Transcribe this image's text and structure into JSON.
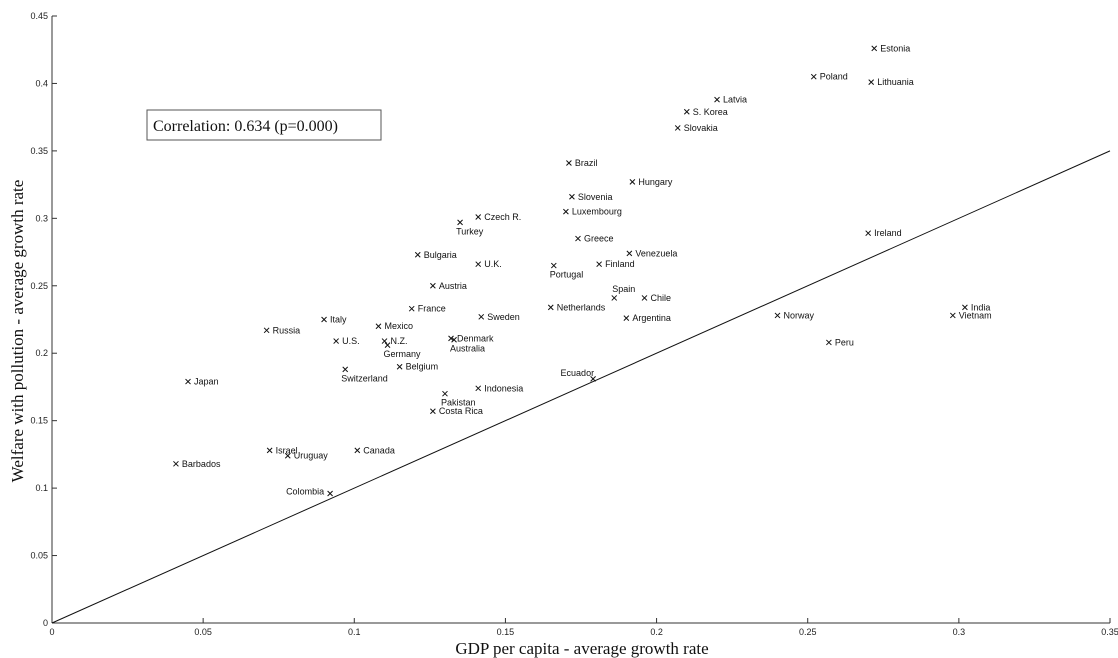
{
  "chart_data": {
    "type": "scatter",
    "xlabel": "GDP per capita - average growth rate",
    "ylabel": "Welfare with pollution - average growth rate",
    "xlim": [
      0,
      0.35
    ],
    "ylim": [
      0,
      0.45
    ],
    "xticks": [
      0,
      0.05,
      0.1,
      0.15,
      0.2,
      0.25,
      0.3,
      0.35
    ],
    "xtick_labels": [
      "0",
      "0.05",
      "0.1",
      "0.15",
      "0.2",
      "0.25",
      "0.3",
      "0.35"
    ],
    "yticks": [
      0,
      0.05,
      0.1,
      0.15,
      0.2,
      0.25,
      0.3,
      0.35,
      0.4,
      0.45
    ],
    "ytick_labels": [
      "0",
      "0.05",
      "0.1",
      "0.15",
      "0.2",
      "0.25",
      "0.3",
      "0.35",
      "0.4",
      "0.45"
    ],
    "grid": false,
    "reference_line": "45-degree line (y = x)",
    "annotation": "Correlation: 0.634 (p=0.000)",
    "points": [
      {
        "label": "Estonia",
        "x": 0.272,
        "y": 0.426,
        "pos": "right"
      },
      {
        "label": "Poland",
        "x": 0.252,
        "y": 0.405,
        "pos": "right"
      },
      {
        "label": "Lithuania",
        "x": 0.271,
        "y": 0.401,
        "pos": "right"
      },
      {
        "label": "Latvia",
        "x": 0.22,
        "y": 0.388,
        "pos": "right"
      },
      {
        "label": "S. Korea",
        "x": 0.21,
        "y": 0.379,
        "pos": "right"
      },
      {
        "label": "Slovakia",
        "x": 0.207,
        "y": 0.367,
        "pos": "right"
      },
      {
        "label": "Brazil",
        "x": 0.171,
        "y": 0.341,
        "pos": "right"
      },
      {
        "label": "Hungary",
        "x": 0.192,
        "y": 0.327,
        "pos": "right"
      },
      {
        "label": "Slovenia",
        "x": 0.172,
        "y": 0.316,
        "pos": "right"
      },
      {
        "label": "Luxembourg",
        "x": 0.17,
        "y": 0.305,
        "pos": "right"
      },
      {
        "label": "Czech R.",
        "x": 0.141,
        "y": 0.301,
        "pos": "right"
      },
      {
        "label": "Turkey",
        "x": 0.135,
        "y": 0.297,
        "pos": "below-right"
      },
      {
        "label": "Ireland",
        "x": 0.27,
        "y": 0.289,
        "pos": "right"
      },
      {
        "label": "Greece",
        "x": 0.174,
        "y": 0.285,
        "pos": "right"
      },
      {
        "label": "Venezuela",
        "x": 0.191,
        "y": 0.274,
        "pos": "right"
      },
      {
        "label": "Bulgaria",
        "x": 0.121,
        "y": 0.273,
        "pos": "right"
      },
      {
        "label": "U.K.",
        "x": 0.141,
        "y": 0.266,
        "pos": "right"
      },
      {
        "label": "Finland",
        "x": 0.181,
        "y": 0.266,
        "pos": "right"
      },
      {
        "label": "Portugal",
        "x": 0.166,
        "y": 0.265,
        "pos": "below"
      },
      {
        "label": "Austria",
        "x": 0.126,
        "y": 0.25,
        "pos": "right"
      },
      {
        "label": "Spain",
        "x": 0.186,
        "y": 0.241,
        "pos": "above-right"
      },
      {
        "label": "Chile",
        "x": 0.196,
        "y": 0.241,
        "pos": "right"
      },
      {
        "label": "India",
        "x": 0.302,
        "y": 0.234,
        "pos": "right"
      },
      {
        "label": "Netherlands",
        "x": 0.165,
        "y": 0.234,
        "pos": "right"
      },
      {
        "label": "France",
        "x": 0.119,
        "y": 0.233,
        "pos": "right"
      },
      {
        "label": "Vietnam",
        "x": 0.298,
        "y": 0.228,
        "pos": "right"
      },
      {
        "label": "Norway",
        "x": 0.24,
        "y": 0.228,
        "pos": "right"
      },
      {
        "label": "Sweden",
        "x": 0.142,
        "y": 0.227,
        "pos": "right"
      },
      {
        "label": "Argentina",
        "x": 0.19,
        "y": 0.226,
        "pos": "right"
      },
      {
        "label": "Italy",
        "x": 0.09,
        "y": 0.225,
        "pos": "right"
      },
      {
        "label": "Mexico",
        "x": 0.108,
        "y": 0.22,
        "pos": "right"
      },
      {
        "label": "Russia",
        "x": 0.071,
        "y": 0.217,
        "pos": "right"
      },
      {
        "label": "Denmark",
        "x": 0.132,
        "y": 0.211,
        "pos": "right"
      },
      {
        "label": "Australia",
        "x": 0.133,
        "y": 0.21,
        "pos": "below-right"
      },
      {
        "label": "U.S.",
        "x": 0.094,
        "y": 0.209,
        "pos": "right"
      },
      {
        "label": "N.Z.",
        "x": 0.11,
        "y": 0.209,
        "pos": "right"
      },
      {
        "label": "Peru",
        "x": 0.257,
        "y": 0.208,
        "pos": "right"
      },
      {
        "label": "Germany",
        "x": 0.111,
        "y": 0.206,
        "pos": "below-right"
      },
      {
        "label": "Belgium",
        "x": 0.115,
        "y": 0.19,
        "pos": "right"
      },
      {
        "label": "Switzerland",
        "x": 0.097,
        "y": 0.188,
        "pos": "below-right"
      },
      {
        "label": "Ecuador",
        "x": 0.179,
        "y": 0.181,
        "pos": "above-left"
      },
      {
        "label": "Japan",
        "x": 0.045,
        "y": 0.179,
        "pos": "right"
      },
      {
        "label": "Indonesia",
        "x": 0.141,
        "y": 0.174,
        "pos": "right"
      },
      {
        "label": "Pakistan",
        "x": 0.13,
        "y": 0.17,
        "pos": "below-right"
      },
      {
        "label": "Costa Rica",
        "x": 0.126,
        "y": 0.157,
        "pos": "right"
      },
      {
        "label": "Canada",
        "x": 0.101,
        "y": 0.128,
        "pos": "right"
      },
      {
        "label": "Israel",
        "x": 0.072,
        "y": 0.128,
        "pos": "right"
      },
      {
        "label": "Uruguay",
        "x": 0.078,
        "y": 0.124,
        "pos": "right"
      },
      {
        "label": "Barbados",
        "x": 0.041,
        "y": 0.118,
        "pos": "right"
      },
      {
        "label": "Colombia",
        "x": 0.092,
        "y": 0.096,
        "pos": "left"
      }
    ]
  }
}
